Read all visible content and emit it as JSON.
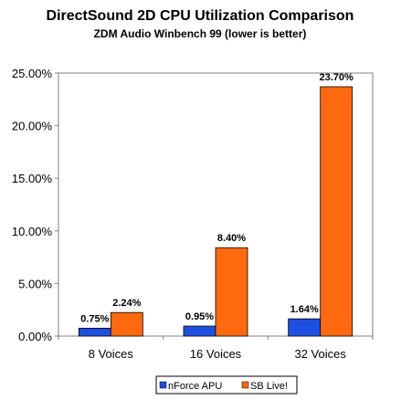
{
  "chart_data": {
    "type": "bar",
    "title": "DirectSound 2D CPU Utilization Comparison",
    "subtitle": "ZDM Audio Winbench 99 (lower is better)",
    "categories": [
      "8 Voices",
      "16 Voices",
      "32 Voices"
    ],
    "series": [
      {
        "name": "nForce APU",
        "values": [
          0.75,
          0.95,
          1.64
        ],
        "labels": [
          "0.75%",
          "0.95%",
          "1.64%"
        ],
        "color": "#1f4fe0"
      },
      {
        "name": "SB Live!",
        "values": [
          2.24,
          8.4,
          23.7
        ],
        "labels": [
          "2.24%",
          "8.40%",
          "23.70%"
        ],
        "color": "#ff6a10"
      }
    ],
    "ylim": [
      0,
      25
    ],
    "yticks": [
      0,
      5,
      10,
      15,
      20,
      25
    ],
    "ytick_labels": [
      "0.00%",
      "5.00%",
      "10.00%",
      "15.00%",
      "20.00%",
      "25.00%"
    ],
    "grid": false,
    "legend_position": "bottom-center",
    "xlabel": "",
    "ylabel": ""
  }
}
